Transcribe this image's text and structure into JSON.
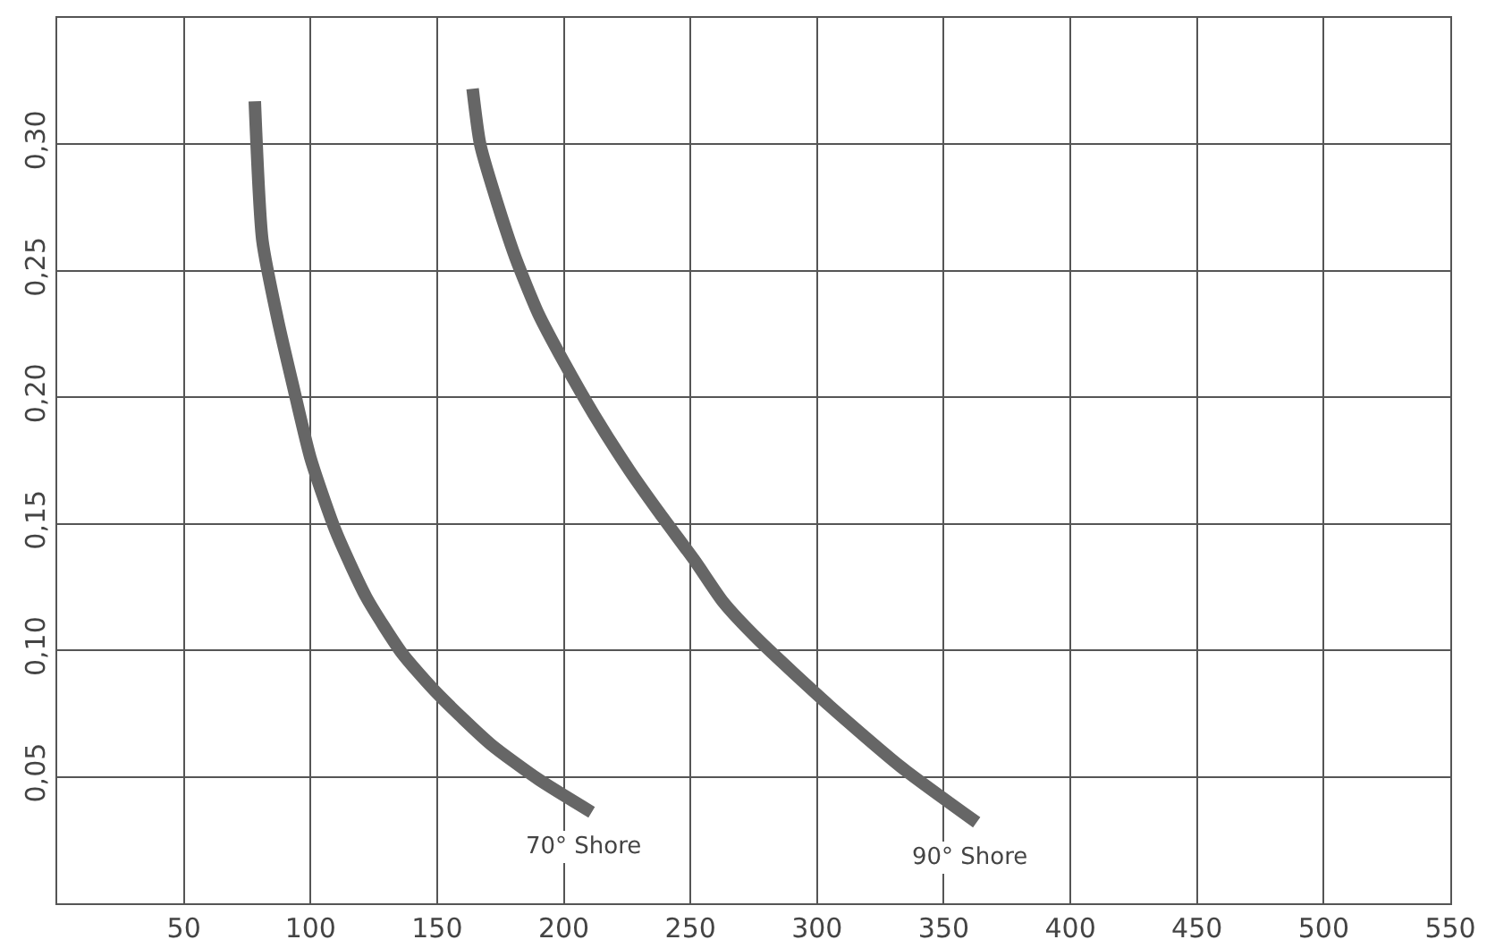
{
  "chart_data": {
    "type": "line",
    "xlim": [
      0,
      550
    ],
    "ylim": [
      0,
      0.35
    ],
    "xticks": [
      50,
      100,
      150,
      200,
      250,
      300,
      350,
      400,
      450,
      500,
      550
    ],
    "yticks": [
      {
        "value": 0.05,
        "label": "0,05"
      },
      {
        "value": 0.1,
        "label": "0,10"
      },
      {
        "value": 0.15,
        "label": "0,15"
      },
      {
        "value": 0.2,
        "label": "0,20"
      },
      {
        "value": 0.25,
        "label": "0,25"
      },
      {
        "value": 0.3,
        "label": "0,30"
      }
    ],
    "grid": true,
    "legend": false,
    "line_style": "solid",
    "marker": "none",
    "series": [
      {
        "name": "70° Shore",
        "color": "#666666",
        "x": [
          78,
          81,
          87,
          93,
          100,
          110,
          122,
          136,
          150,
          171,
          190,
          211
        ],
        "values": [
          0.317,
          0.262,
          0.231,
          0.205,
          0.176,
          0.147,
          0.121,
          0.099,
          0.083,
          0.063,
          0.049,
          0.036
        ]
      },
      {
        "name": "90° Shore",
        "color": "#666666",
        "x": [
          164,
          167,
          174,
          181,
          190,
          200,
          212,
          226,
          238,
          252,
          263,
          277,
          305,
          333,
          363
        ],
        "values": [
          0.322,
          0.3,
          0.276,
          0.255,
          0.233,
          0.214,
          0.193,
          0.171,
          0.154,
          0.135,
          0.119,
          0.104,
          0.078,
          0.054,
          0.032
        ]
      }
    ]
  }
}
